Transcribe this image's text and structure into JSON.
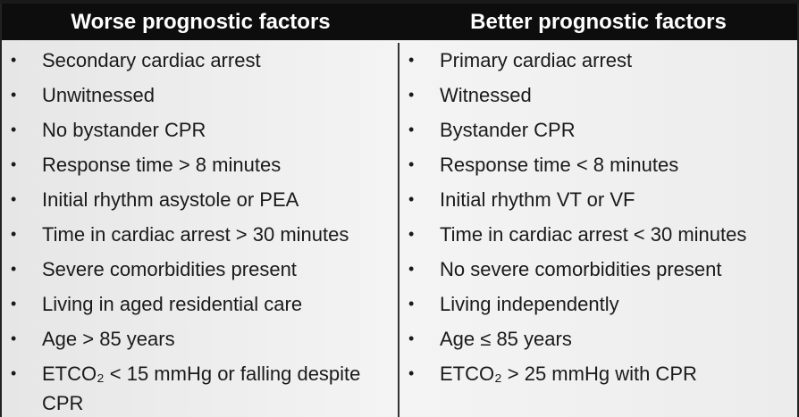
{
  "table": {
    "columns": [
      "Worse prognostic factors",
      "Better prognostic factors"
    ],
    "rows": [
      [
        "Secondary cardiac arrest",
        "Primary cardiac arrest"
      ],
      [
        "Unwitnessed",
        "Witnessed"
      ],
      [
        "No bystander CPR",
        "Bystander CPR"
      ],
      [
        "Response time > 8 minutes",
        "Response time < 8 minutes"
      ],
      [
        "Initial rhythm asystole or PEA",
        "Initial rhythm VT or VF"
      ],
      [
        "Time in cardiac arrest > 30 minutes",
        "Time in cardiac arrest < 30 minutes"
      ],
      [
        "Severe comorbidities present",
        "No severe comorbidities present"
      ],
      [
        "Living in aged residential care",
        "Living independently"
      ],
      [
        "Age > 85 years",
        "Age ≤ 85 years"
      ],
      [
        "ETCO₂ < 15 mmHg or falling despite CPR",
        "ETCO₂ > 25 mmHg with CPR"
      ]
    ]
  }
}
